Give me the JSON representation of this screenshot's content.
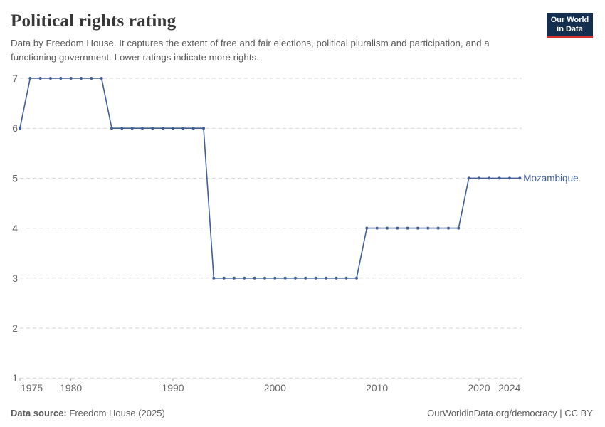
{
  "header": {
    "title": "Political rights rating",
    "subtitle": "Data by Freedom House. It captures the extent of free and fair elections, political pluralism and participation, and a functioning government. Lower ratings indicate more rights.",
    "logo_line1": "Our World",
    "logo_line2": "in Data"
  },
  "chart_data": {
    "type": "line",
    "title": "Political rights rating",
    "xlabel": "",
    "ylabel": "",
    "xlim": [
      1975,
      2024
    ],
    "ylim": [
      1,
      7
    ],
    "grid": "horizontal-dashed",
    "legend_position": "end-of-line",
    "x_ticks": [
      1975,
      1980,
      1990,
      2000,
      2010,
      2020,
      2024
    ],
    "y_ticks": [
      1,
      2,
      3,
      4,
      5,
      6,
      7
    ],
    "series": [
      {
        "name": "Mozambique",
        "color": "#425E96",
        "x_start": 1975,
        "values": [
          6,
          7,
          7,
          7,
          7,
          7,
          7,
          7,
          7,
          6,
          6,
          6,
          6,
          6,
          6,
          6,
          6,
          6,
          6,
          3,
          3,
          3,
          3,
          3,
          3,
          3,
          3,
          3,
          3,
          3,
          3,
          3,
          3,
          3,
          4,
          4,
          4,
          4,
          4,
          4,
          4,
          4,
          4,
          4,
          5,
          5,
          5,
          5,
          5,
          5
        ]
      }
    ]
  },
  "footer": {
    "source_label": "Data source:",
    "source_value": "Freedom House (2025)",
    "license": "OurWorldinData.org/democracy | CC BY"
  },
  "colors": {
    "accent_line": "#425E96",
    "grid": "#d5d5d5",
    "axis_text": "#666666",
    "tick_mark": "#a9a9a9",
    "logo_navy": "#132e4f",
    "logo_red": "#d7342c"
  }
}
